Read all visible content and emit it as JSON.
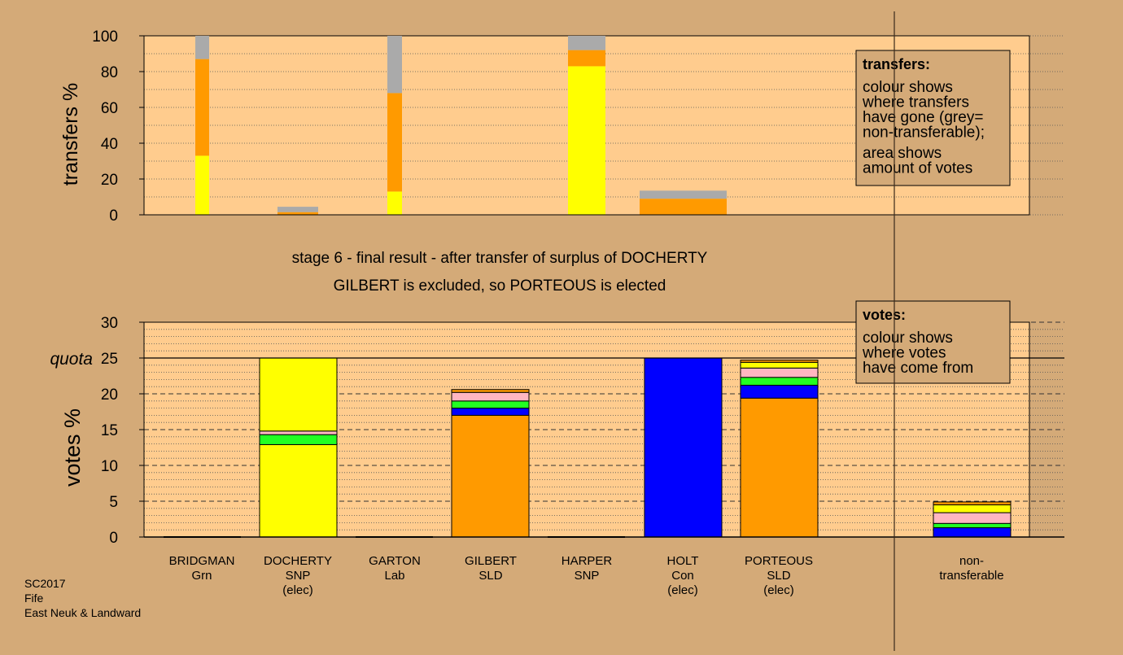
{
  "chart_data": [
    {
      "type": "bar",
      "stacked": true,
      "ylabel": "transfers %",
      "ylim": [
        0,
        100
      ],
      "yticks": [
        0,
        20,
        40,
        60,
        80,
        100
      ],
      "grid": "dotted",
      "categories": [
        "BRIDGMAN",
        "DOCHERTY",
        "GARTON",
        "GILBERT",
        "HARPER",
        "HOLT",
        "PORTEOUS"
      ],
      "bars": [
        {
          "category": "BRIDGMAN",
          "segments": [
            {
              "color": "#ffff00",
              "value": 33
            },
            {
              "color": "#ff9a00",
              "value": 54
            },
            {
              "color": "#aaaaaa",
              "value": 13
            }
          ]
        },
        {
          "category": "DOCHERTY",
          "segments": [
            {
              "color": "#ff9a00",
              "value": 1.5
            },
            {
              "color": "#aaaaaa",
              "value": 3
            }
          ]
        },
        {
          "category": "GARTON",
          "segments": [
            {
              "color": "#ffff00",
              "value": 13
            },
            {
              "color": "#ff9a00",
              "value": 55
            },
            {
              "color": "#aaaaaa",
              "value": 32
            }
          ]
        },
        {
          "category": "HARPER",
          "segments": [
            {
              "color": "#ffff00",
              "value": 83
            },
            {
              "color": "#ff9a00",
              "value": 9
            },
            {
              "color": "#aaaaaa",
              "value": 8
            }
          ]
        },
        {
          "category": "HOLT",
          "segments": [
            {
              "color": "#ff9a00",
              "value": 9
            },
            {
              "color": "#aaaaaa",
              "value": 4.5
            }
          ]
        }
      ],
      "legend": {
        "title": "transfers:",
        "lines": [
          "colour shows",
          "where transfers",
          "have gone (grey=",
          "non-transferable);",
          "area shows",
          "amount of votes"
        ]
      }
    },
    {
      "type": "bar",
      "stacked": true,
      "ylabel": "votes %",
      "ylim": [
        0,
        30
      ],
      "yticks": [
        0,
        5,
        10,
        15,
        20,
        25,
        30
      ],
      "quota": {
        "label": "quota",
        "value": 25
      },
      "categories": [
        {
          "lines": [
            "BRIDGMAN",
            "Grn"
          ]
        },
        {
          "lines": [
            "DOCHERTY",
            "SNP",
            "(elec)"
          ]
        },
        {
          "lines": [
            "GARTON",
            "Lab"
          ]
        },
        {
          "lines": [
            "GILBERT",
            "SLD"
          ]
        },
        {
          "lines": [
            "HARPER",
            "SNP"
          ]
        },
        {
          "lines": [
            "HOLT",
            "Con",
            "(elec)"
          ]
        },
        {
          "lines": [
            "PORTEOUS",
            "SLD",
            "(elec)"
          ]
        },
        {
          "lines": [
            "non-",
            "transferable"
          ]
        }
      ],
      "bars": [
        {
          "category": "BRIDGMAN",
          "segments": []
        },
        {
          "category": "DOCHERTY",
          "segments": [
            {
              "color": "#ffff00",
              "value": 12.9
            },
            {
              "color": "#22ff22",
              "value": 1.4
            },
            {
              "color": "#ffb6c1",
              "value": 0.5
            },
            {
              "color": "#ffff00",
              "value": 10.2
            }
          ]
        },
        {
          "category": "GARTON",
          "segments": []
        },
        {
          "category": "GILBERT",
          "segments": [
            {
              "color": "#ff9a00",
              "value": 17.0
            },
            {
              "color": "#0000ff",
              "value": 1.0
            },
            {
              "color": "#22ff22",
              "value": 1.0
            },
            {
              "color": "#ffb6c1",
              "value": 1.2
            },
            {
              "color": "#ff9a00",
              "value": 0.4
            }
          ]
        },
        {
          "category": "HARPER",
          "segments": []
        },
        {
          "category": "HOLT",
          "segments": [
            {
              "color": "#0000ff",
              "value": 25.0
            }
          ]
        },
        {
          "category": "PORTEOUS",
          "segments": [
            {
              "color": "#ff9a00",
              "value": 19.4
            },
            {
              "color": "#0000ff",
              "value": 1.8
            },
            {
              "color": "#22ff22",
              "value": 1.1
            },
            {
              "color": "#ffb6c1",
              "value": 1.3
            },
            {
              "color": "#ffff00",
              "value": 0.8
            },
            {
              "color": "#ff9a00",
              "value": 0.3
            }
          ]
        },
        {
          "category": "non-transferable",
          "segments": [
            {
              "color": "#0000ff",
              "value": 1.3
            },
            {
              "color": "#22ff22",
              "value": 0.6
            },
            {
              "color": "#ffb6c1",
              "value": 1.5
            },
            {
              "color": "#ffff00",
              "value": 1.1
            },
            {
              "color": "#ff9a00",
              "value": 0.4
            }
          ]
        }
      ],
      "legend": {
        "title": "votes:",
        "lines": [
          "colour shows",
          "where votes",
          "have come from"
        ]
      }
    }
  ],
  "subtitle": {
    "line1": "stage 6 - final result - after transfer of surplus of DOCHERTY",
    "line2": "GILBERT is excluded, so PORTEOUS is elected"
  },
  "footer": {
    "line1": "SC2017",
    "line2": "Fife",
    "line3": "East Neuk & Landward"
  },
  "colors": {
    "background": "#d4aa78",
    "plot_background": "#ffcc8e",
    "legend_background": "#d4aa78"
  }
}
